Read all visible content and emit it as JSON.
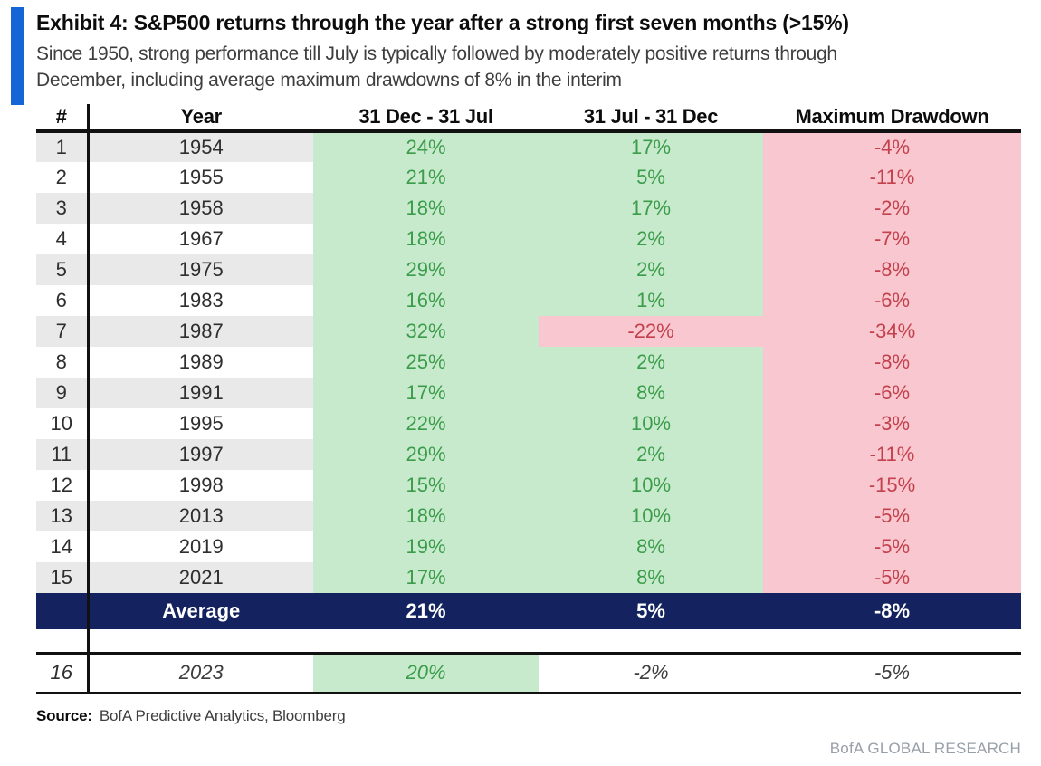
{
  "exhibit": {
    "title": "Exhibit 4: S&P500 returns through the year after a strong first seven months (>15%)",
    "subtitle_lines": [
      "Since 1950, strong performance till July is typically followed by moderately positive returns through",
      "December, including average maximum drawdowns of 8% in the interim"
    ]
  },
  "table": {
    "columns": [
      "#",
      "Year",
      "31 Dec - 31 Jul",
      "31 Jul - 31 Dec",
      "Maximum Drawdown"
    ],
    "rows": [
      {
        "num": "1",
        "year": "1954",
        "h1": "24%",
        "h2": "17%",
        "dd": "-4%"
      },
      {
        "num": "2",
        "year": "1955",
        "h1": "21%",
        "h2": "5%",
        "dd": "-11%"
      },
      {
        "num": "3",
        "year": "1958",
        "h1": "18%",
        "h2": "17%",
        "dd": "-2%"
      },
      {
        "num": "4",
        "year": "1967",
        "h1": "18%",
        "h2": "2%",
        "dd": "-7%"
      },
      {
        "num": "5",
        "year": "1975",
        "h1": "29%",
        "h2": "2%",
        "dd": "-8%"
      },
      {
        "num": "6",
        "year": "1983",
        "h1": "16%",
        "h2": "1%",
        "dd": "-6%"
      },
      {
        "num": "7",
        "year": "1987",
        "h1": "32%",
        "h2": "-22%",
        "dd": "-34%"
      },
      {
        "num": "8",
        "year": "1989",
        "h1": "25%",
        "h2": "2%",
        "dd": "-8%"
      },
      {
        "num": "9",
        "year": "1991",
        "h1": "17%",
        "h2": "8%",
        "dd": "-6%"
      },
      {
        "num": "10",
        "year": "1995",
        "h1": "22%",
        "h2": "10%",
        "dd": "-3%"
      },
      {
        "num": "11",
        "year": "1997",
        "h1": "29%",
        "h2": "2%",
        "dd": "-11%"
      },
      {
        "num": "12",
        "year": "1998",
        "h1": "15%",
        "h2": "10%",
        "dd": "-15%"
      },
      {
        "num": "13",
        "year": "2013",
        "h1": "18%",
        "h2": "10%",
        "dd": "-5%"
      },
      {
        "num": "14",
        "year": "2019",
        "h1": "19%",
        "h2": "8%",
        "dd": "-5%"
      },
      {
        "num": "15",
        "year": "2021",
        "h1": "17%",
        "h2": "8%",
        "dd": "-5%"
      }
    ],
    "average": {
      "label": "Average",
      "h1": "21%",
      "h2": "5%",
      "dd": "-8%"
    },
    "current": {
      "num": "16",
      "year": "2023",
      "h1": "20%",
      "h2": "-2%",
      "dd": "-5%"
    }
  },
  "footer": {
    "source_label": "Source:",
    "source_text": "BofA Predictive Analytics, Bloomberg",
    "brand": "BofA GLOBAL RESEARCH"
  },
  "colors": {
    "accent_blue": "#1565d6",
    "average_navy": "#14235f",
    "positive_bg": "#c7eacd",
    "negative_bg": "#f9c7cf",
    "positive_text": "#3b9c4a",
    "negative_text": "#c2414d",
    "zebra_gray": "#e9e9e9",
    "brand_gray": "#97a0a8"
  }
}
